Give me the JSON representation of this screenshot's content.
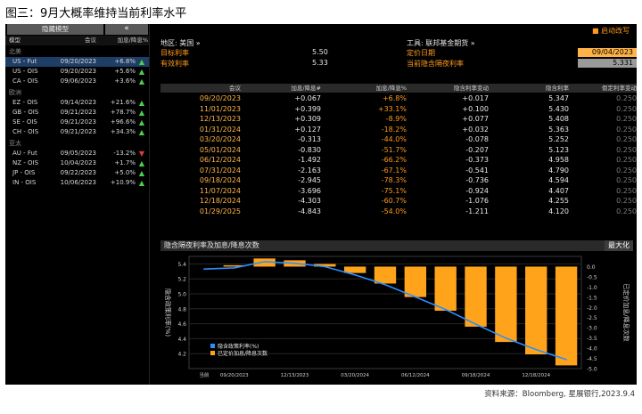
{
  "page_title": "图三：9月大概率维持当前利率水平",
  "footer": "资料来源：Bloomberg, 星展银行,2023.9.4",
  "sidebar": {
    "hide_button": "隐藏模型",
    "collapse_button": "«",
    "headers": {
      "model": "模型",
      "meeting": "会议",
      "change": "加息/降息%"
    },
    "groups": [
      {
        "name": "北美",
        "rows": [
          {
            "model": "US - Fut",
            "date": "09/20/2023",
            "change": "+6.8%",
            "dir": "up",
            "selected": true
          },
          {
            "model": "US - OIS",
            "date": "09/20/2023",
            "change": "+5.6%",
            "dir": "up"
          },
          {
            "model": "CA - OIS",
            "date": "09/06/2023",
            "change": "+3.6%",
            "dir": "up"
          }
        ]
      },
      {
        "name": "欧洲",
        "rows": [
          {
            "model": "EZ - OIS",
            "date": "09/14/2023",
            "change": "+21.6%",
            "dir": "up"
          },
          {
            "model": "GB - OIS",
            "date": "09/21/2023",
            "change": "+78.7%",
            "dir": "up"
          },
          {
            "model": "SE - OIS",
            "date": "09/21/2023",
            "change": "+96.6%",
            "dir": "up"
          },
          {
            "model": "CH - OIS",
            "date": "09/21/2023",
            "change": "+34.3%",
            "dir": "up"
          }
        ]
      },
      {
        "name": "亚太",
        "rows": [
          {
            "model": "AU - Fut",
            "date": "09/05/2023",
            "change": "-13.2%",
            "dir": "down"
          },
          {
            "model": "NZ - OIS",
            "date": "10/04/2023",
            "change": "+1.7%",
            "dir": "up"
          },
          {
            "model": "JP - OIS",
            "date": "09/22/2023",
            "change": "+5.0%",
            "dir": "up"
          },
          {
            "model": "IN - OIS",
            "date": "10/06/2023",
            "change": "+10.9%",
            "dir": "up"
          }
        ]
      }
    ]
  },
  "info": {
    "region_label": "地区: 美国 »",
    "target_rate_label": "目标利率",
    "target_rate_value": "5.50",
    "effective_rate_label": "有效利率",
    "effective_rate_value": "5.33",
    "instrument_label": "工具: 联邦基金期货 »",
    "pricing_date_label": "定价日期",
    "pricing_date_value": "09/04/2023",
    "implied_overnight_label": "当前隐含隔夜利率",
    "implied_overnight_value": "5.331",
    "auto_refresh": "■ 启动改写"
  },
  "table": {
    "headers": [
      "会议",
      "加息/降息#",
      "加息/降息%",
      "隐含利率变动",
      "隐含利率",
      "假定利率变动"
    ],
    "rows": [
      [
        "09/20/2023",
        "+0.067",
        "+6.8%",
        "+0.017",
        "5.347",
        "0.250"
      ],
      [
        "11/01/2023",
        "+0.399",
        "+33.1%",
        "+0.100",
        "5.430",
        "0.250"
      ],
      [
        "12/13/2023",
        "+0.309",
        "-8.9%",
        "+0.077",
        "5.408",
        "0.250"
      ],
      [
        "01/31/2024",
        "+0.127",
        "-18.2%",
        "+0.032",
        "5.363",
        "0.250"
      ],
      [
        "03/20/2024",
        "-0.313",
        "-44.0%",
        "-0.078",
        "5.252",
        "0.250"
      ],
      [
        "05/01/2024",
        "-0.830",
        "-51.7%",
        "-0.207",
        "5.123",
        "0.250"
      ],
      [
        "06/12/2024",
        "-1.492",
        "-66.2%",
        "-0.373",
        "4.958",
        "0.250"
      ],
      [
        "07/31/2024",
        "-2.163",
        "-67.1%",
        "-0.541",
        "4.790",
        "0.250"
      ],
      [
        "09/18/2024",
        "-2.945",
        "-78.3%",
        "-0.736",
        "4.594",
        "0.250"
      ],
      [
        "11/07/2024",
        "-3.696",
        "-75.1%",
        "-0.924",
        "4.407",
        "0.250"
      ],
      [
        "12/18/2024",
        "-4.303",
        "-60.7%",
        "-1.076",
        "4.255",
        "0.250"
      ],
      [
        "01/29/2025",
        "-4.843",
        "-54.0%",
        "-1.211",
        "4.120",
        "0.250"
      ]
    ]
  },
  "chart": {
    "title": "隐含隔夜利率及加息/降息次数",
    "max_button": "最大化",
    "left_axis_title": "隐含政策利率(%)",
    "right_axis_title": "已定价加息/降息次数",
    "legend": [
      "隐含政策利率(%)",
      "已定价加息/降息次数"
    ],
    "x_tick_labels": [
      "当前",
      "09/20/2023",
      "12/13/2023",
      "03/20/2024",
      "06/12/2024",
      "09/18/2024",
      "12/18/2024"
    ],
    "colors": {
      "line": "#2b8fff",
      "bars": "#ffa31a"
    }
  },
  "chart_data": {
    "type": "bar",
    "title": "隐含隔夜利率及加息/降息次数",
    "categories": [
      "当前",
      "09/20/2023",
      "11/01/2023",
      "12/13/2023",
      "01/31/2024",
      "03/20/2024",
      "05/01/2024",
      "06/12/2024",
      "07/31/2024",
      "09/18/2024",
      "11/07/2024",
      "12/18/2024",
      "01/29/2025"
    ],
    "series": [
      {
        "name": "隐含政策利率(%)",
        "axis": "left",
        "type": "line",
        "values": [
          5.331,
          5.347,
          5.43,
          5.408,
          5.363,
          5.252,
          5.123,
          4.958,
          4.79,
          4.594,
          4.407,
          4.255,
          4.12
        ]
      },
      {
        "name": "已定价加息/降息次数",
        "axis": "right",
        "type": "bar",
        "values": [
          null,
          0.067,
          0.399,
          0.309,
          0.127,
          -0.313,
          -0.83,
          -1.492,
          -2.163,
          -2.945,
          -3.696,
          -4.303,
          -4.843
        ]
      }
    ],
    "ylim_left": [
      4.0,
      5.5
    ],
    "yticks_left": [
      4.2,
      4.4,
      4.6,
      4.8,
      5.0,
      5.2,
      5.4
    ],
    "ylim_right": [
      -5.0,
      0.5
    ],
    "yticks_right": [
      0.0,
      -0.5,
      -1.0,
      -1.5,
      -2.0,
      -2.5,
      -3.0,
      -3.5,
      -4.0,
      -4.5,
      -5.0
    ],
    "grid": true,
    "legend_position": "bottom-left"
  }
}
